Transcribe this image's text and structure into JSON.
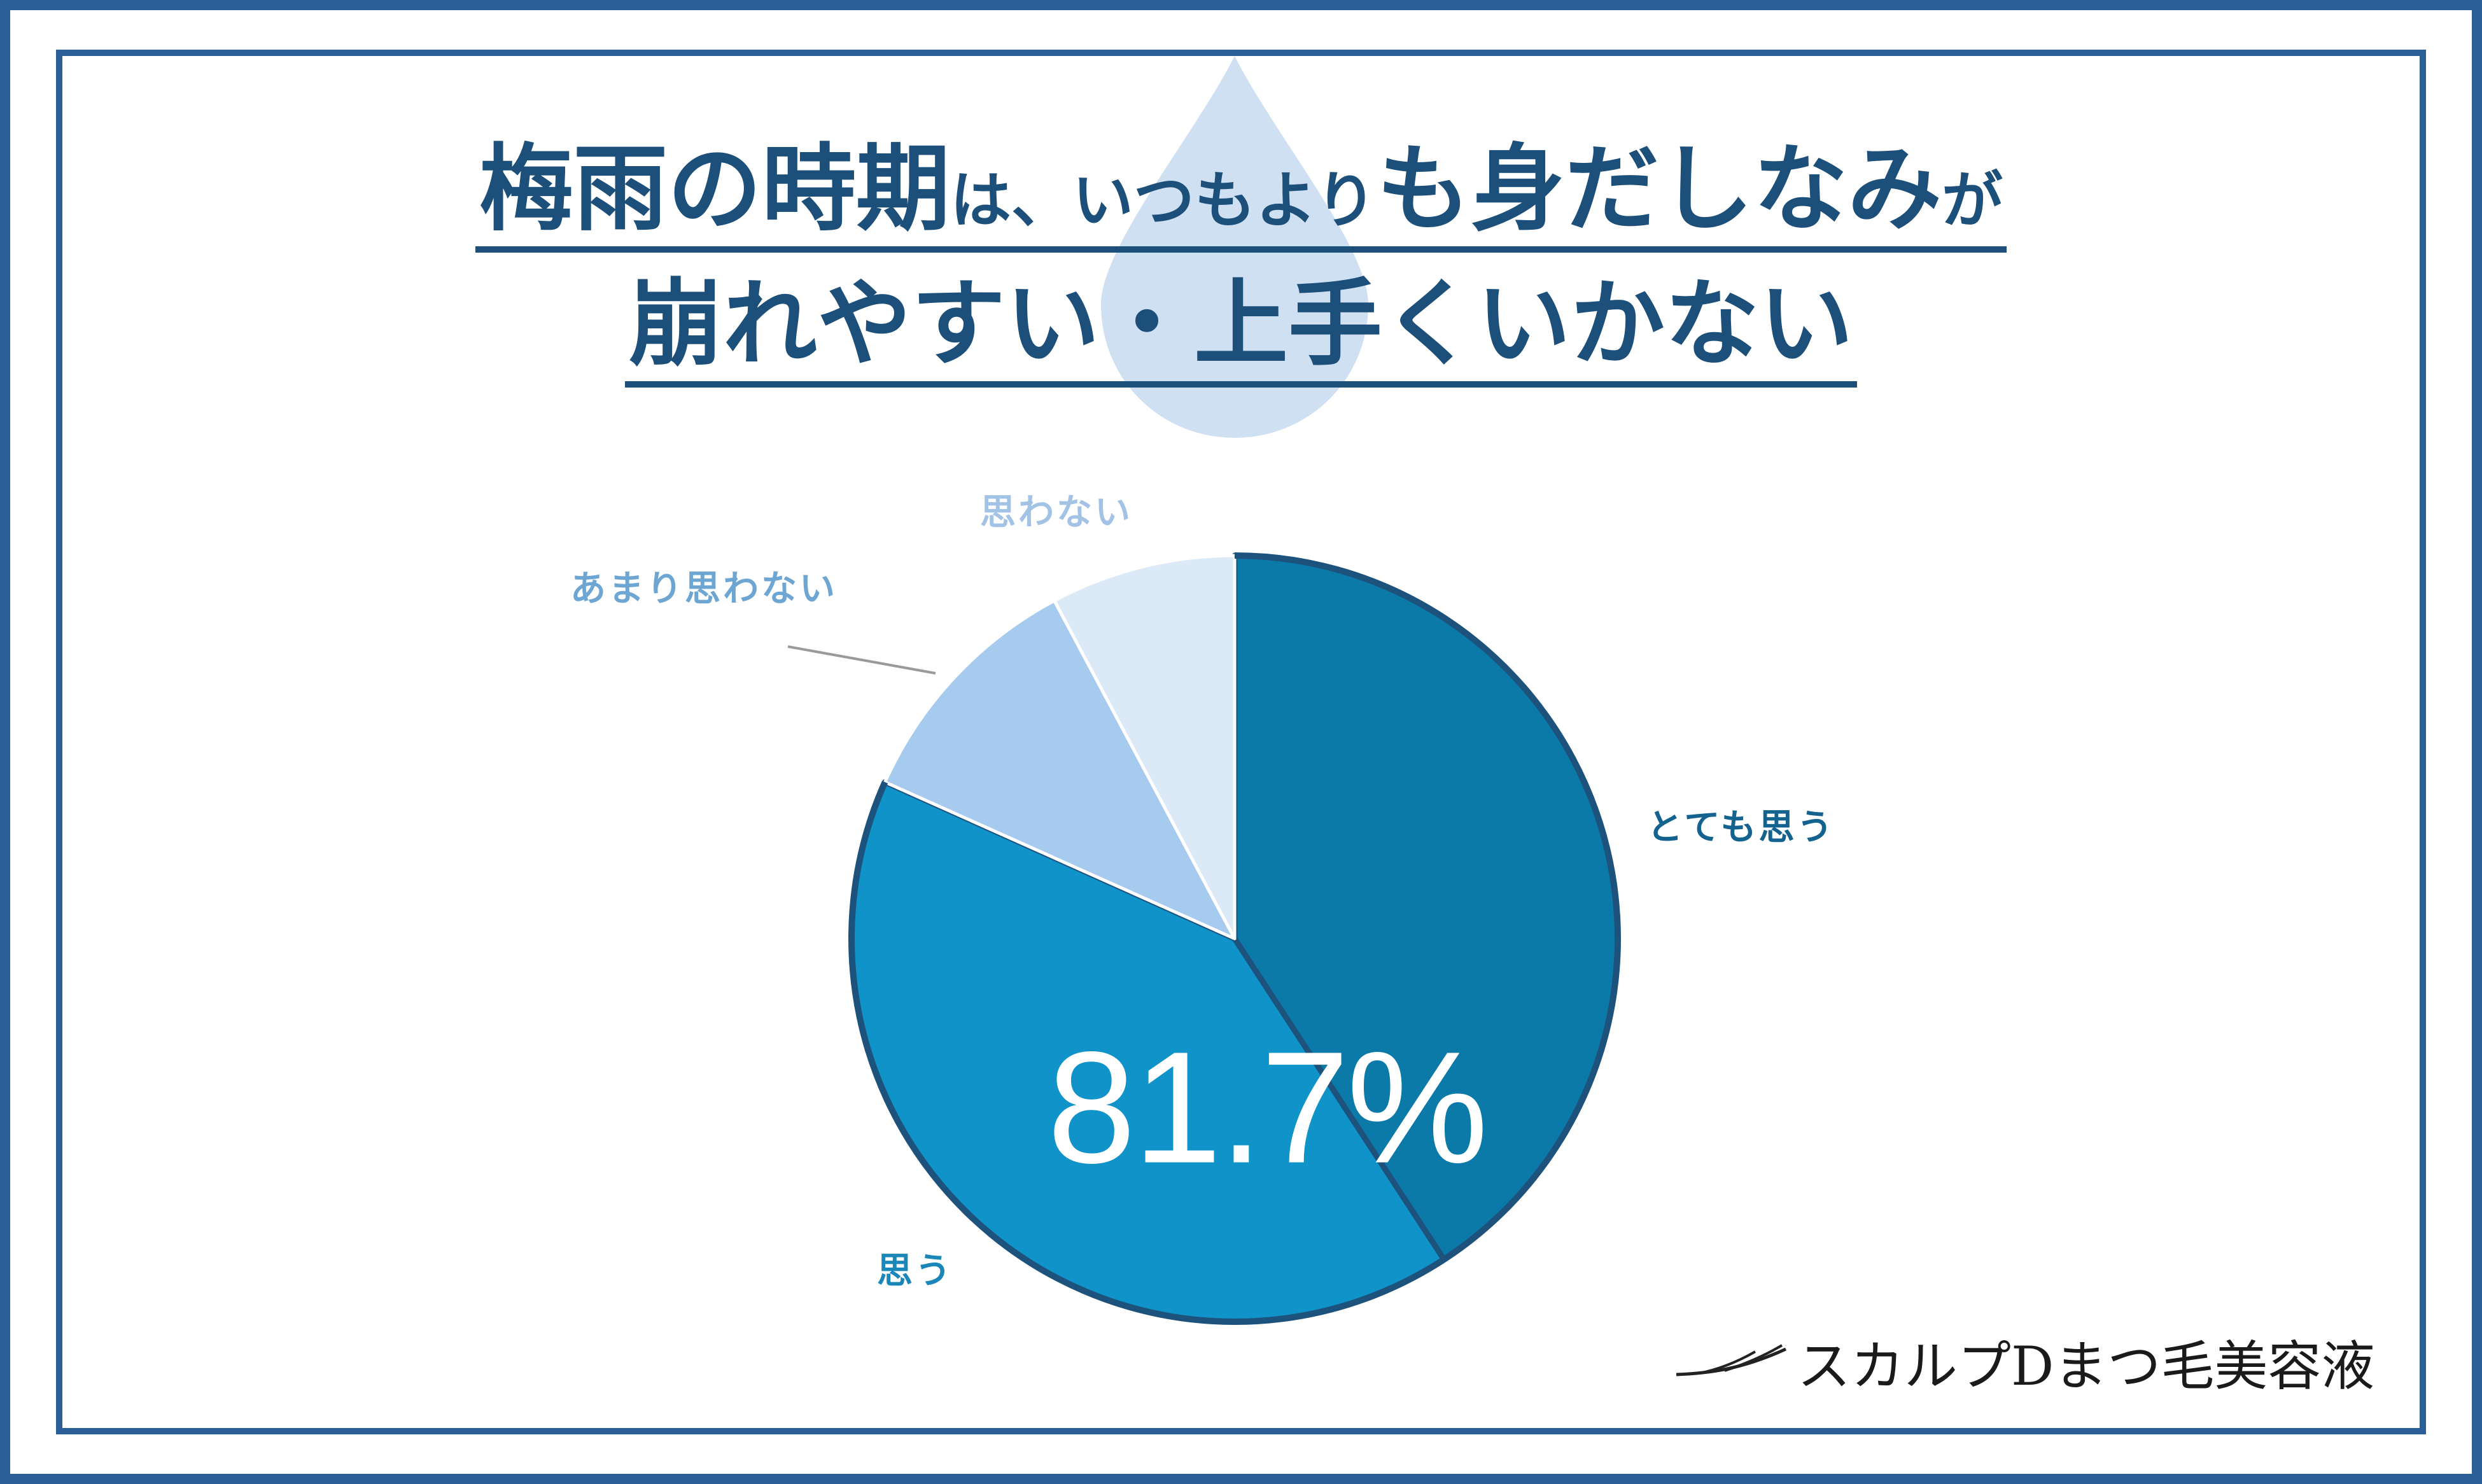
{
  "title": {
    "line1": [
      {
        "text": "梅雨の時期",
        "small": false
      },
      {
        "text": "は、いつもより",
        "small": true
      },
      {
        "text": "も身だしなみ",
        "small": false
      },
      {
        "text": "が",
        "small": true
      }
    ],
    "line2": "崩れやすい・上手くいかない"
  },
  "chart_data": {
    "type": "pie",
    "start_angle": "12 o'clock",
    "direction": "clockwise",
    "slices": [
      {
        "label": "とても思う",
        "value": 40.8,
        "color": "#0b7aa8"
      },
      {
        "label": "思う",
        "value": 40.9,
        "color": "#0f93c9"
      },
      {
        "label": "あまり思わない",
        "value": 10.5,
        "color": "#a7cbee"
      },
      {
        "label": "思わない",
        "value": 7.8,
        "color": "#dce9f7"
      }
    ],
    "center_label": "81.7%",
    "edge_color": "#1d527d"
  },
  "logo": {
    "text": "スカルプDまつ毛美容液"
  },
  "colors": {
    "frame": "#2b5f97",
    "title": "#1c4f79",
    "drop": "#cfe0f3"
  }
}
